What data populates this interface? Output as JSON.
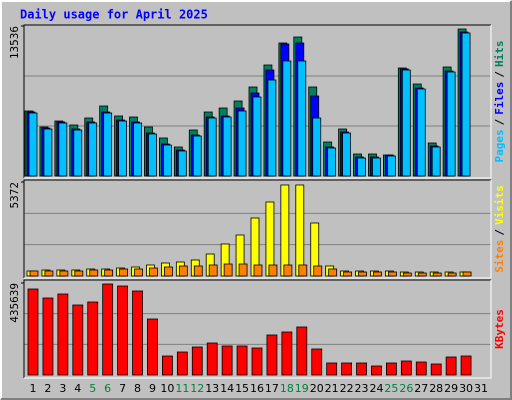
{
  "chart_data": {
    "type": "bar",
    "title": "Daily usage for April 2025",
    "categories": [
      "1",
      "2",
      "3",
      "4",
      "5",
      "6",
      "7",
      "8",
      "9",
      "10",
      "11",
      "12",
      "13",
      "14",
      "15",
      "16",
      "17",
      "18",
      "19",
      "20",
      "21",
      "22",
      "23",
      "24",
      "25",
      "26",
      "27",
      "28",
      "29",
      "30",
      "31"
    ],
    "category_colors": [
      "#000000",
      "#000000",
      "#000000",
      "#000000",
      "#008040",
      "#008040",
      "#000000",
      "#000000",
      "#000000",
      "#000000",
      "#008040",
      "#008040",
      "#000000",
      "#000000",
      "#000000",
      "#000000",
      "#000000",
      "#008040",
      "#008040",
      "#000000",
      "#000000",
      "#000000",
      "#000000",
      "#000000",
      "#008040",
      "#008040",
      "#000000",
      "#000000",
      "#000000",
      "#000000",
      "#000000"
    ],
    "separator": "/",
    "panels": [
      {
        "ylim": [
          0,
          13536
        ],
        "yticks": [
          13536
        ],
        "series": [
          {
            "name": "Hits",
            "color": "#00805c",
            "values": [
              5866,
              4422,
              4963,
              4602,
              5234,
              6317,
              5414,
              5324,
              4422,
              3429,
              2617,
              4151,
              5775,
              6136,
              6768,
              8031,
              10017,
              12002,
              12543,
              8031,
              3068,
              4241,
              1985,
              1985,
              1895,
              9746,
              8302,
              2978,
              9836,
              13265,
              null
            ]
          },
          {
            "name": "Files",
            "color": "#0000ff",
            "values": [
              5775,
              4331,
              4873,
              4241,
              4873,
              5775,
              5053,
              4873,
              3880,
              2887,
              2346,
              3700,
              5324,
              5414,
              6136,
              7490,
              9565,
              11912,
              12002,
              7219,
              2617,
              3970,
              1714,
              1714,
              1895,
              9655,
              7941,
              2707,
              9475,
              12994,
              null
            ]
          },
          {
            "name": "Pages",
            "color": "#00c0ff",
            "values": [
              5685,
              4241,
              4783,
              4151,
              4783,
              5685,
              4963,
              4783,
              3790,
              2797,
              2256,
              3610,
              5234,
              5324,
              5866,
              7129,
              8663,
              10378,
              10378,
              5234,
              2527,
              3880,
              1624,
              1624,
              1805,
              9565,
              7851,
              2617,
              9385,
              12904,
              null
            ]
          }
        ]
      },
      {
        "ylim": [
          0,
          5372
        ],
        "yticks": [
          5372
        ],
        "series": [
          {
            "name": "Visits",
            "color": "#ffff00",
            "values": [
              286,
              343,
              343,
              343,
              400,
              400,
              457,
              514,
              629,
              743,
              800,
              914,
              1257,
              1829,
              2343,
              3315,
              4229,
              5201,
              5201,
              3029,
              572,
              286,
              286,
              286,
              286,
              229,
              229,
              229,
              229,
              229,
              null
            ]
          },
          {
            "name": "Sites",
            "color": "#ff8000",
            "values": [
              286,
              286,
              286,
              286,
              343,
              343,
              400,
              400,
              457,
              514,
              572,
              572,
              629,
              686,
              686,
              629,
              629,
              629,
              629,
              572,
              400,
              229,
              229,
              229,
              229,
              171,
              171,
              171,
              171,
              229,
              null
            ]
          }
        ]
      },
      {
        "ylim": [
          0,
          435639
        ],
        "yticks": [
          435639
        ],
        "series": [
          {
            "name": "KBytes",
            "color": "#ff0000",
            "values": [
              407227,
              364610,
              383551,
              331464,
              345670,
              430903,
              421433,
              397757,
              265171,
              89969,
              108910,
              132586,
              151526,
              137321,
              137321,
              127850,
              189408,
              203614,
              227290,
              123115,
              56822,
              56822,
              56822,
              42617,
              56822,
              66293,
              61558,
              52087,
              85234,
              89969,
              null
            ]
          }
        ]
      }
    ]
  }
}
